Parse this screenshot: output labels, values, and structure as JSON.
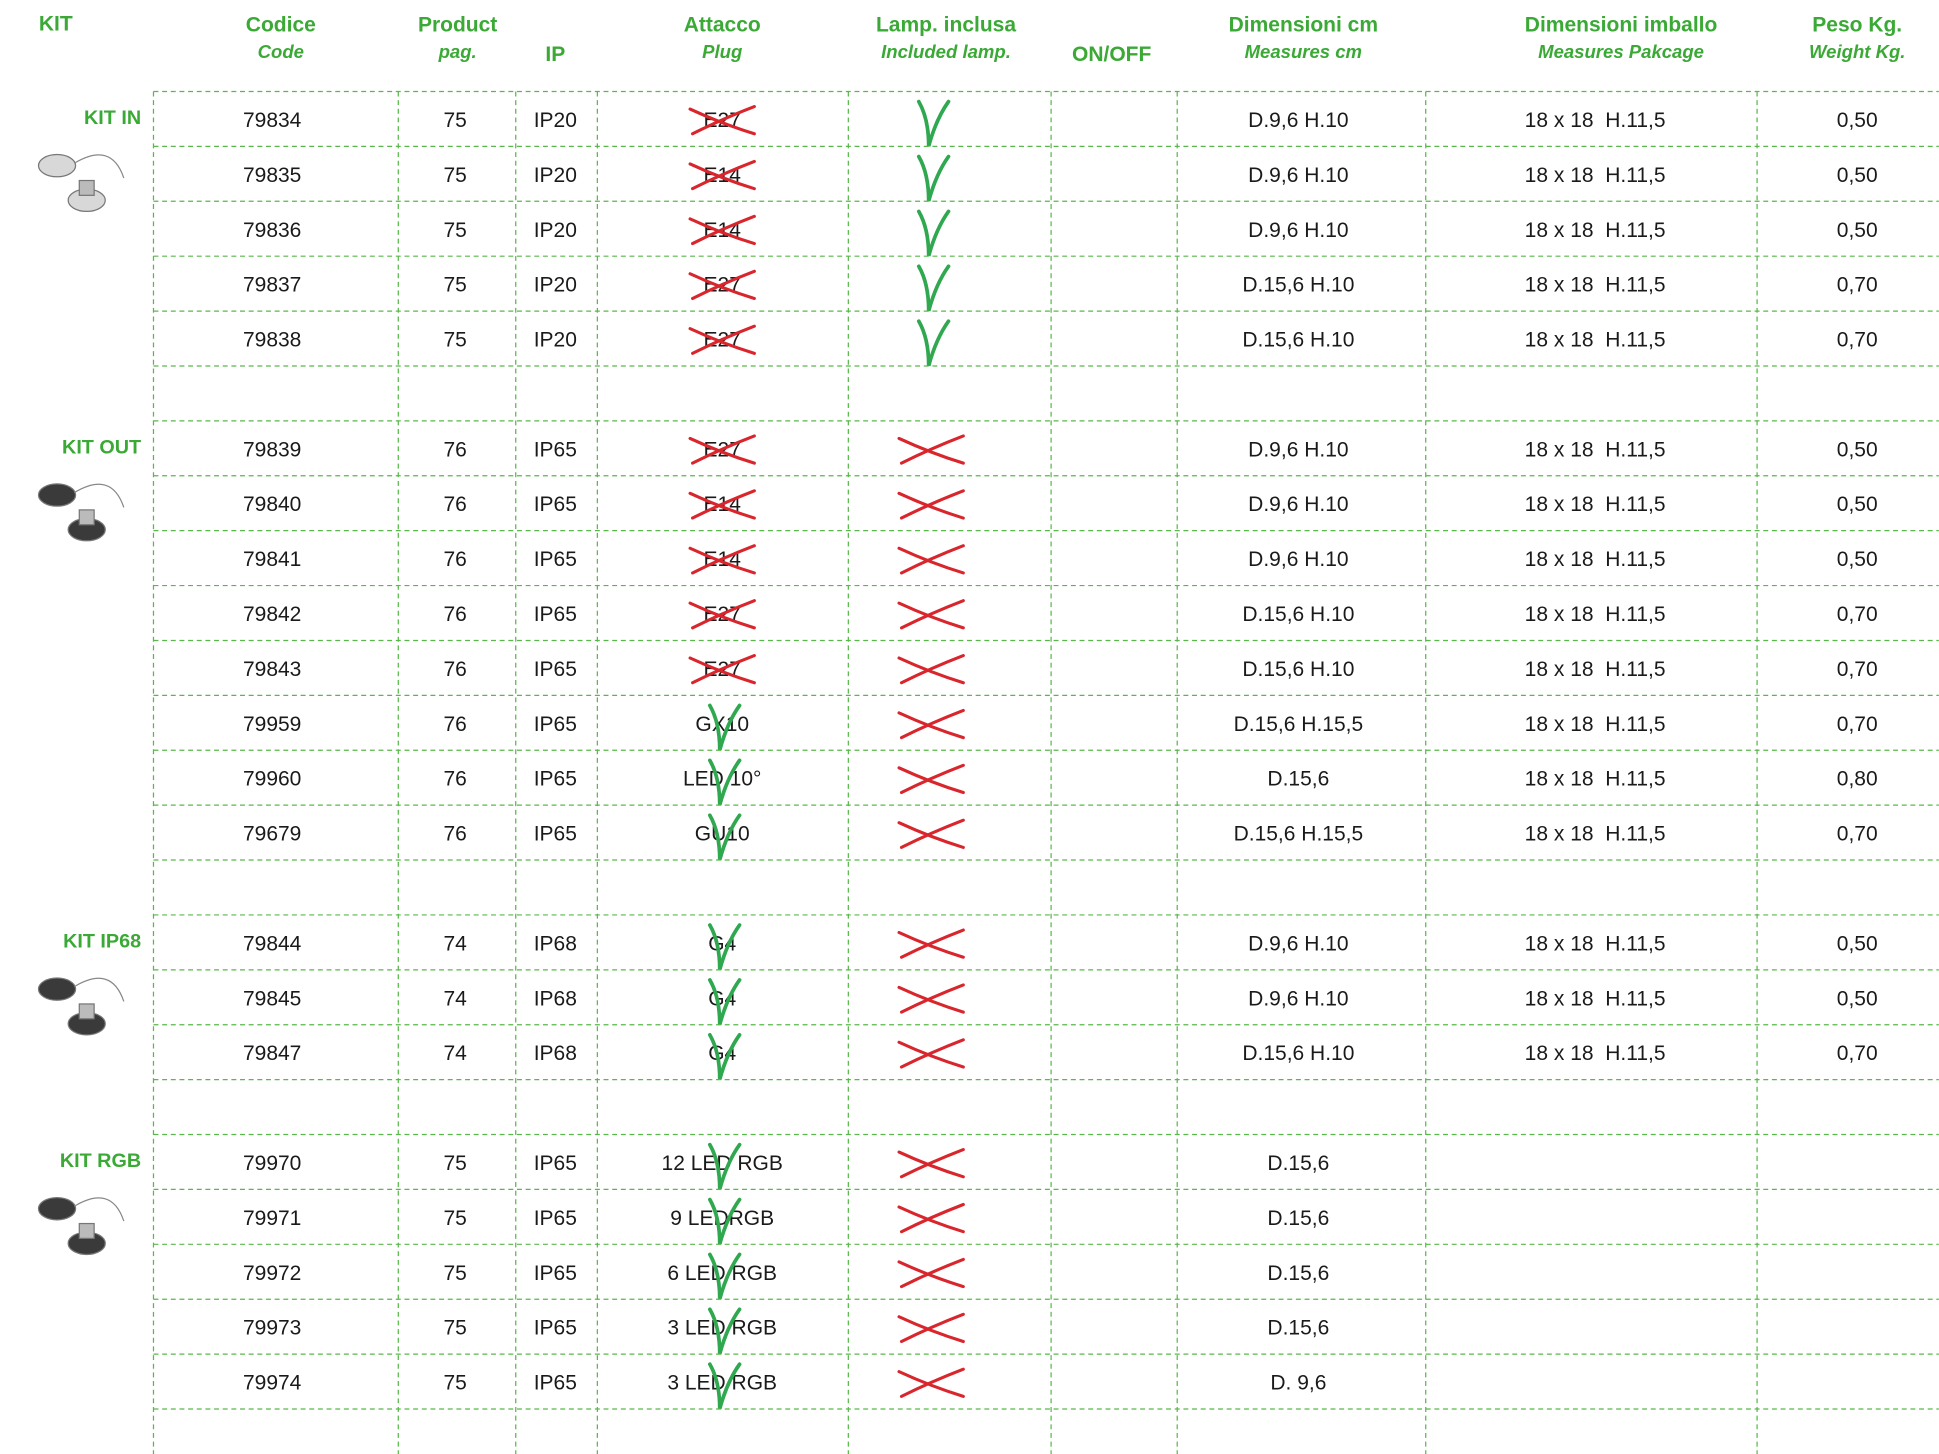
{
  "header": [
    {
      "title": "KIT"
    },
    {
      "title": "Codice",
      "subtitle": "Code"
    },
    {
      "title": "Product",
      "subtitle": "pag."
    },
    {
      "title": "IP"
    },
    {
      "title": "Attacco",
      "subtitle": "Plug"
    },
    {
      "title": "Lamp. inclusa",
      "subtitle": "Included lamp."
    },
    {
      "title": "ON/OFF"
    },
    {
      "title": "Dimensioni cm",
      "subtitle": "Measures cm"
    },
    {
      "title": "Dimensioni imballo",
      "subtitle": "Measures Pakcage"
    },
    {
      "title": "Peso Kg.",
      "subtitle": "Weight Kg."
    }
  ],
  "groups": [
    {
      "kit": "KIT IN",
      "rows": [
        [
          "79834",
          "75",
          "IP20",
          "E27",
          false,
          true,
          "D.9,6 H.10",
          "18 x 18  H.11,5",
          "0,50"
        ],
        [
          "79835",
          "75",
          "IP20",
          "E14",
          false,
          true,
          "D.9,6 H.10",
          "18 x 18  H.11,5",
          "0,50"
        ],
        [
          "79836",
          "75",
          "IP20",
          "E14",
          false,
          true,
          "D.9,6 H.10",
          "18 x 18  H.11,5",
          "0,50"
        ],
        [
          "79837",
          "75",
          "IP20",
          "E27",
          false,
          true,
          "D.15,6 H.10",
          "18 x 18  H.11,5",
          "0,70"
        ],
        [
          "79838",
          "75",
          "IP20",
          "E27",
          false,
          true,
          "D.15,6 H.10",
          "18 x 18  H.11,5",
          "0,70"
        ]
      ]
    },
    {
      "kit": "KIT OUT",
      "rows": [
        [
          "79839",
          "76",
          "IP65",
          "E27",
          false,
          false,
          "D.9,6 H.10",
          "18 x 18  H.11,5",
          "0,50"
        ],
        [
          "79840",
          "76",
          "IP65",
          "E14",
          false,
          false,
          "D.9,6 H.10",
          "18 x 18  H.11,5",
          "0,50"
        ],
        [
          "79841",
          "76",
          "IP65",
          "E14",
          false,
          false,
          "D.9,6 H.10",
          "18 x 18  H.11,5",
          "0,50"
        ],
        [
          "79842",
          "76",
          "IP65",
          "E27",
          false,
          false,
          "D.15,6 H.10",
          "18 x 18  H.11,5",
          "0,70"
        ],
        [
          "79843",
          "76",
          "IP65",
          "E27",
          false,
          false,
          "D.15,6 H.10",
          "18 x 18  H.11,5",
          "0,70"
        ],
        [
          "79959",
          "76",
          "IP65",
          "GX10",
          true,
          false,
          "D.15,6 H.15,5",
          "18 x 18  H.11,5",
          "0,70"
        ],
        [
          "79960",
          "76",
          "IP65",
          "LED 10°",
          true,
          false,
          "D.15,6",
          "18 x 18  H.11,5",
          "0,80"
        ],
        [
          "79679",
          "76",
          "IP65",
          "GU10",
          true,
          false,
          "D.15,6 H.15,5",
          "18 x 18  H.11,5",
          "0,70"
        ]
      ]
    },
    {
      "kit": "KIT IP68",
      "rows": [
        [
          "79844",
          "74",
          "IP68",
          "G4",
          true,
          false,
          "D.9,6 H.10",
          "18 x 18  H.11,5",
          "0,50"
        ],
        [
          "79845",
          "74",
          "IP68",
          "G4",
          true,
          false,
          "D.9,6 H.10",
          "18 x 18  H.11,5",
          "0,50"
        ],
        [
          "79847",
          "74",
          "IP68",
          "G4",
          true,
          false,
          "D.15,6 H.10",
          "18 x 18  H.11,5",
          "0,70"
        ]
      ]
    },
    {
      "kit": "KIT RGB",
      "rows": [
        [
          "79970",
          "75",
          "IP65",
          "12 LED RGB",
          true,
          false,
          "D.15,6",
          null,
          null
        ],
        [
          "79971",
          "75",
          "IP65",
          "9 LEDRGB",
          true,
          false,
          "D.15,6",
          null,
          null
        ],
        [
          "79972",
          "75",
          "IP65",
          "6 LED RGB",
          true,
          false,
          "D.15,6",
          null,
          null
        ],
        [
          "79973",
          "75",
          "IP65",
          "3 LED RGB",
          true,
          false,
          "D.15,6",
          null,
          null
        ],
        [
          "79974",
          "75",
          "IP65",
          "3 LED RGB",
          true,
          false,
          "D. 9,6",
          null,
          null
        ]
      ]
    }
  ]
}
